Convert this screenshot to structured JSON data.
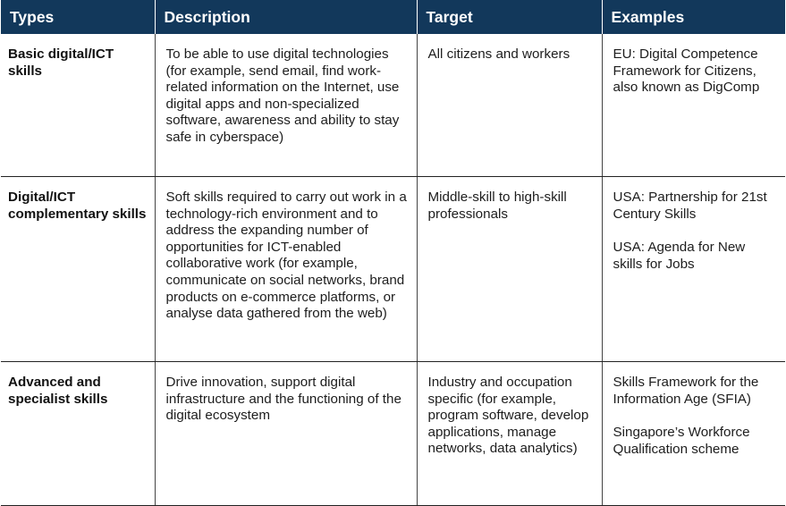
{
  "table": {
    "headers": [
      "Types",
      "Description",
      "Target",
      "Examples"
    ],
    "rows": [
      {
        "type": "Basic digital/ICT skills",
        "description": "To be able to use digital technologies (for example, send email, find work-related information on the Internet, use digital apps and non-specialized software, awareness and ability to stay safe in cyberspace)",
        "target": "All citizens and workers",
        "examples": [
          "EU: Digital Competence Framework for Citizens, also known as DigComp"
        ]
      },
      {
        "type": "Digital/ICT complementary skills",
        "description": "Soft skills required to carry out work in a technology-rich environment and to address the expanding number of opportunities for ICT-enabled collaborative work (for example, communicate on social networks, brand products on e-commerce platforms, or analyse data gathered from the web)",
        "target": "Middle-skill to high-skill professionals",
        "examples": [
          "USA: Partnership for 21st Century Skills",
          "USA: Agenda for New skills for Jobs"
        ]
      },
      {
        "type": "Advanced and specialist skills",
        "description": "Drive innovation, support digital infrastructure and the functioning of the digital ecosystem",
        "target": "Industry and occupation specific (for example, program software, develop applications, manage networks, data analytics)",
        "examples": [
          "Skills Framework for the Information Age (SFIA)",
          "Singapore’s Workforce Qualification scheme"
        ]
      }
    ]
  }
}
